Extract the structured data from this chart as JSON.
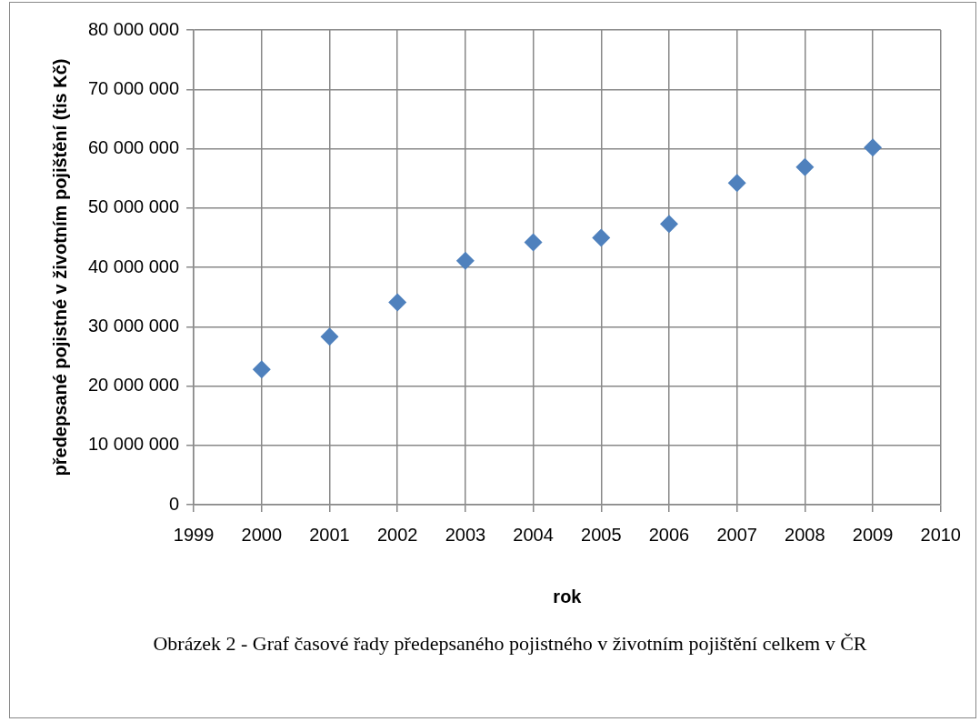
{
  "chart_data": {
    "type": "scatter",
    "xlabel": "rok",
    "ylabel": "předepsané pojistné v životním pojištění (tis Kč)",
    "x": [
      2000,
      2001,
      2002,
      2003,
      2004,
      2005,
      2006,
      2007,
      2008,
      2009
    ],
    "series": [
      {
        "color": "#4f81bd",
        "values": [
          22800000,
          28300000,
          34100000,
          41100000,
          44200000,
          45000000,
          47300000,
          54200000,
          56900000,
          60200000
        ]
      }
    ],
    "xlim": [
      1999,
      2010
    ],
    "xticks": [
      1999,
      2000,
      2001,
      2002,
      2003,
      2004,
      2005,
      2006,
      2007,
      2008,
      2009,
      2010
    ],
    "ylim": [
      0,
      80000000
    ],
    "yticks": [
      {
        "value": 0,
        "label": "0"
      },
      {
        "value": 10000000,
        "label": "10 000 000"
      },
      {
        "value": 20000000,
        "label": "20 000 000"
      },
      {
        "value": 30000000,
        "label": "30 000 000"
      },
      {
        "value": 40000000,
        "label": "40 000 000"
      },
      {
        "value": 50000000,
        "label": "50 000 000"
      },
      {
        "value": 60000000,
        "label": "60 000 000"
      },
      {
        "value": 70000000,
        "label": "70 000 000"
      },
      {
        "value": 80000000,
        "label": "80 000 000"
      }
    ],
    "grid": true,
    "legend": false,
    "marker": "diamond",
    "annotations": [
      "Obrázek 2 - Graf časové řady předepsaného pojistného v životním pojištění celkem v ČR"
    ]
  }
}
